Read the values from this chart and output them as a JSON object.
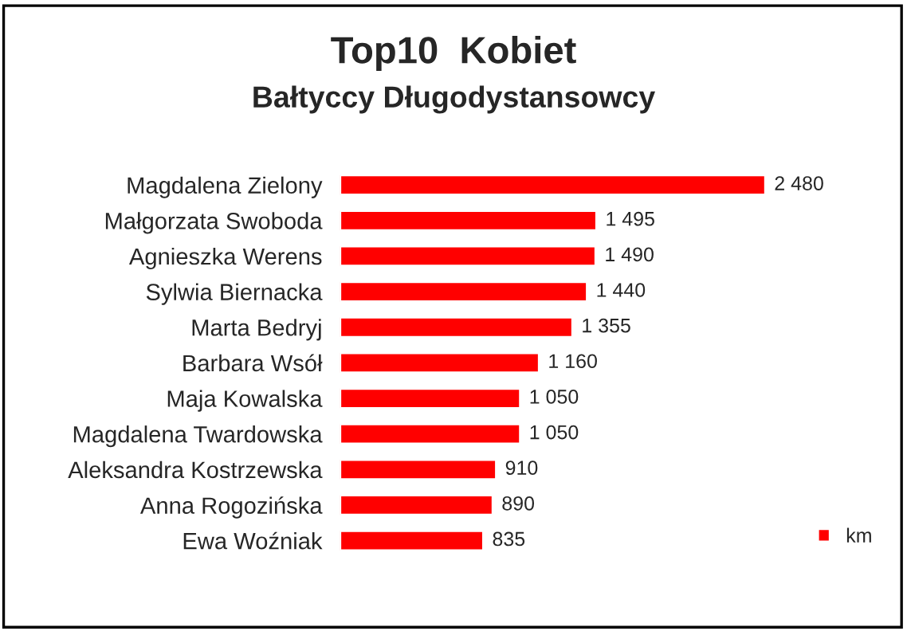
{
  "chart_data": {
    "type": "bar",
    "orientation": "horizontal",
    "title": "Top10  Kobiet",
    "subtitle": "Bałtyccy Długodystansowcy",
    "categories": [
      "Magdalena Zielony",
      "Małgorzata Swoboda",
      "Agnieszka Werens",
      "Sylwia Biernacka",
      "Marta Bedryj",
      "Barbara Wsół",
      "Maja Kowalska",
      "Magdalena Twardowska",
      "Aleksandra Kostrzewska",
      "Anna Rogozińska",
      "Ewa Woźniak"
    ],
    "series": [
      {
        "name": "km",
        "color": "#ff0000",
        "values": [
          2480,
          1495,
          1490,
          1440,
          1355,
          1160,
          1050,
          1050,
          910,
          890,
          835
        ]
      }
    ],
    "data_labels": true,
    "legend": "bottom right",
    "grid": false
  }
}
